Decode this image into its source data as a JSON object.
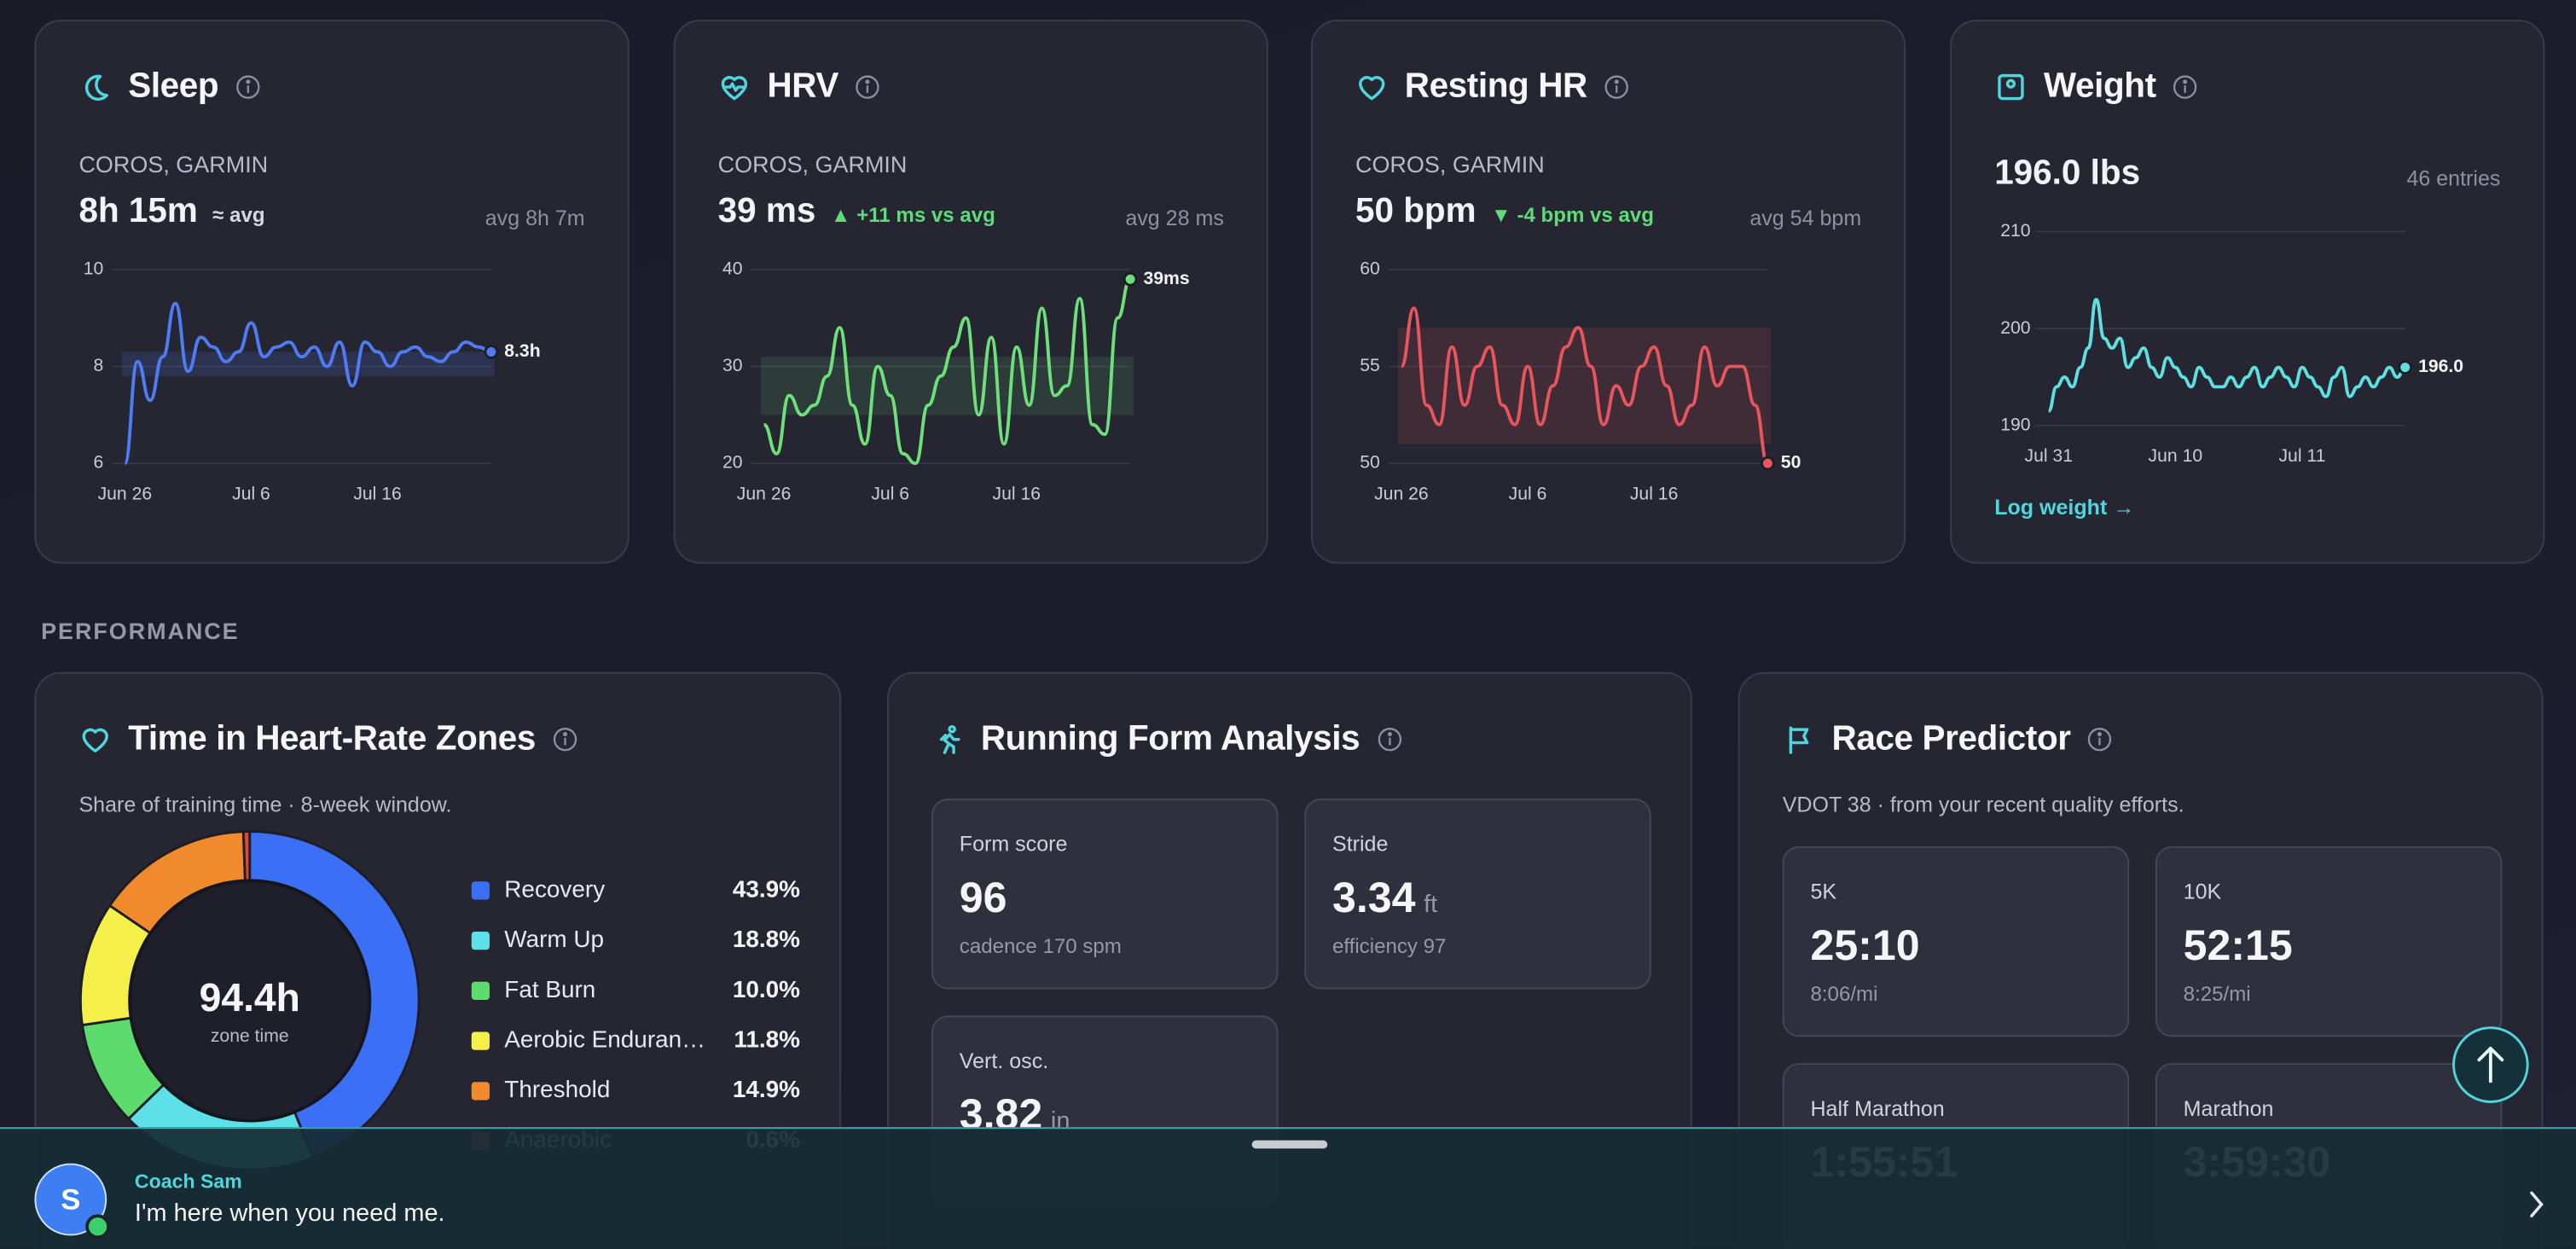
{
  "metric_cards": [
    {
      "title": "Sleep",
      "icon": "moon",
      "source": "COROS, GARMIN",
      "value": "8h 15m",
      "delta": "≈ avg",
      "delta_color": "#d6d8e2",
      "avg": "avg 8h 7m",
      "chart": {
        "type": "line",
        "color": "#4f7cf5",
        "band_color": "rgba(79,124,245,0.16)",
        "band": [
          7.8,
          8.3
        ],
        "categories": [
          "Jun 26",
          null,
          null,
          null,
          null,
          null,
          null,
          null,
          null,
          null,
          "Jul 6",
          null,
          null,
          null,
          null,
          null,
          null,
          null,
          null,
          null,
          "Jul 16",
          null,
          null,
          null,
          null,
          null,
          null,
          null,
          null,
          null
        ],
        "values": [
          6,
          8.1,
          7.3,
          8.2,
          9.3,
          7.9,
          8.6,
          8.4,
          8.1,
          8.3,
          8.9,
          8.2,
          8.4,
          8.5,
          8.2,
          8.4,
          8.0,
          8.5,
          7.6,
          8.5,
          8.3,
          8.0,
          8.3,
          8.4,
          8.2,
          8.1,
          8.3,
          8.5,
          8.4,
          8.3
        ],
        "end_label": "8.3h",
        "ylim": [
          6,
          10
        ],
        "yticks": [
          6,
          8,
          10
        ],
        "grid": true
      }
    },
    {
      "title": "HRV",
      "icon": "heartbeat",
      "source": "COROS, GARMIN",
      "value": "39 ms",
      "delta": "▲ +11 ms vs avg",
      "delta_color": "#5fdc7a",
      "avg": "avg 28 ms",
      "chart": {
        "type": "line",
        "color": "#6ee07a",
        "band_color": "rgba(110,224,122,0.12)",
        "band": [
          25,
          31
        ],
        "categories": [
          "Jun 26",
          null,
          null,
          null,
          null,
          null,
          null,
          null,
          null,
          null,
          "Jul 6",
          null,
          null,
          null,
          null,
          null,
          null,
          null,
          null,
          null,
          "Jul 16",
          null,
          null,
          null,
          null,
          null,
          null,
          null,
          null,
          null
        ],
        "values": [
          24,
          21,
          27,
          25,
          26,
          29,
          34,
          26,
          22,
          30,
          27,
          21,
          20,
          26,
          29,
          32,
          35,
          25,
          33,
          22,
          32,
          26,
          36,
          27,
          28,
          37,
          24,
          23,
          35,
          39
        ],
        "end_label": "39ms",
        "ylim": [
          20,
          40
        ],
        "yticks": [
          20,
          30,
          40
        ],
        "grid": true
      }
    },
    {
      "title": "Resting HR",
      "icon": "heart",
      "source": "COROS, GARMIN",
      "value": "50 bpm",
      "delta": "▼ -4 bpm vs avg",
      "delta_color": "#5fdc7a",
      "avg": "avg 54 bpm",
      "chart": {
        "type": "line",
        "color": "#e8555f",
        "band_color": "rgba(232,85,95,0.14)",
        "band": [
          51,
          57
        ],
        "categories": [
          "Jun 26",
          null,
          null,
          null,
          null,
          null,
          null,
          null,
          null,
          null,
          "Jul 6",
          null,
          null,
          null,
          null,
          null,
          null,
          null,
          null,
          null,
          "Jul 16",
          null,
          null,
          null,
          null,
          null,
          null,
          null,
          null,
          null
        ],
        "values": [
          55,
          58,
          53,
          52,
          56,
          53,
          55,
          56,
          53,
          52,
          55,
          52,
          54,
          56,
          57,
          55,
          52,
          54,
          53,
          55,
          56,
          54,
          52,
          53,
          56,
          54,
          55,
          55,
          53,
          50
        ],
        "end_label": "50",
        "ylim": [
          50,
          60
        ],
        "yticks": [
          50,
          55,
          60
        ],
        "grid": true
      }
    },
    {
      "title": "Weight",
      "icon": "scale",
      "value": "196.0 lbs",
      "entries": "46 entries",
      "link": "Log weight →",
      "chart": {
        "type": "line",
        "color": "#5fe0e0",
        "categories": [
          "Jul 31",
          null,
          null,
          null,
          null,
          null,
          null,
          null,
          null,
          null,
          null,
          null,
          null,
          null,
          null,
          null,
          "Jun 10",
          null,
          null,
          null,
          null,
          null,
          null,
          null,
          null,
          null,
          null,
          null,
          null,
          null,
          null,
          null,
          "Jul 11",
          null,
          null,
          null,
          null,
          null,
          null,
          null,
          null,
          null,
          null,
          null,
          null,
          null
        ],
        "values": [
          191.5,
          194,
          195,
          194,
          196,
          198,
          203,
          199,
          198,
          199,
          196,
          197,
          198,
          196,
          195,
          197,
          196,
          195,
          194,
          196,
          195,
          194,
          194,
          195,
          194,
          195,
          196,
          194,
          195,
          196,
          195,
          194,
          196,
          195,
          194,
          193,
          195,
          196,
          193,
          194,
          195,
          194,
          195,
          196,
          195,
          196
        ],
        "end_label": "196.0",
        "ylim": [
          190,
          210
        ],
        "yticks": [
          190,
          200,
          210
        ],
        "grid": true
      }
    }
  ],
  "section_label": "PERFORMANCE",
  "hr_zones": {
    "title": "Time in Heart-Rate Zones",
    "subtitle": "Share of training time · 8-week window.",
    "total": "94.4h",
    "total_label": "zone time",
    "chart": {
      "type": "pie",
      "categories": [
        "Recovery",
        "Warm Up",
        "Fat Burn",
        "Aerobic Enduran…",
        "Threshold",
        "Anaerobic"
      ],
      "values": [
        43.9,
        18.8,
        10.0,
        11.8,
        14.9,
        0.6
      ],
      "value_labels": [
        "43.9%",
        "18.8%",
        "10.0%",
        "11.8%",
        "14.9%",
        "0.6%"
      ],
      "colors": [
        "#3b6ff5",
        "#5ee0e8",
        "#5bdc6c",
        "#f5ef4a",
        "#f08a2c",
        "#e0463a"
      ]
    }
  },
  "running_form": {
    "title": "Running Form Analysis",
    "tiles": [
      {
        "label": "Form score",
        "value": "96",
        "sub": "cadence 170 spm"
      },
      {
        "label": "Stride",
        "value": "3.34",
        "unit": "ft",
        "sub": "efficiency 97"
      },
      {
        "label": "Vert. osc.",
        "value": "3.82",
        "unit": "in"
      }
    ]
  },
  "race_predictor": {
    "title": "Race Predictor",
    "subtitle": "VDOT 38 · from your recent quality efforts.",
    "tiles": [
      {
        "label": "5K",
        "value": "25:10",
        "sub": "8:06/mi"
      },
      {
        "label": "10K",
        "value": "52:15",
        "sub": "8:25/mi"
      },
      {
        "label": "Half Marathon",
        "value": "1:55:51"
      },
      {
        "label": "Marathon",
        "value": "3:59:30"
      }
    ]
  },
  "coach": {
    "initial": "S",
    "name": "Coach Sam",
    "message": "I'm here when you need me."
  }
}
